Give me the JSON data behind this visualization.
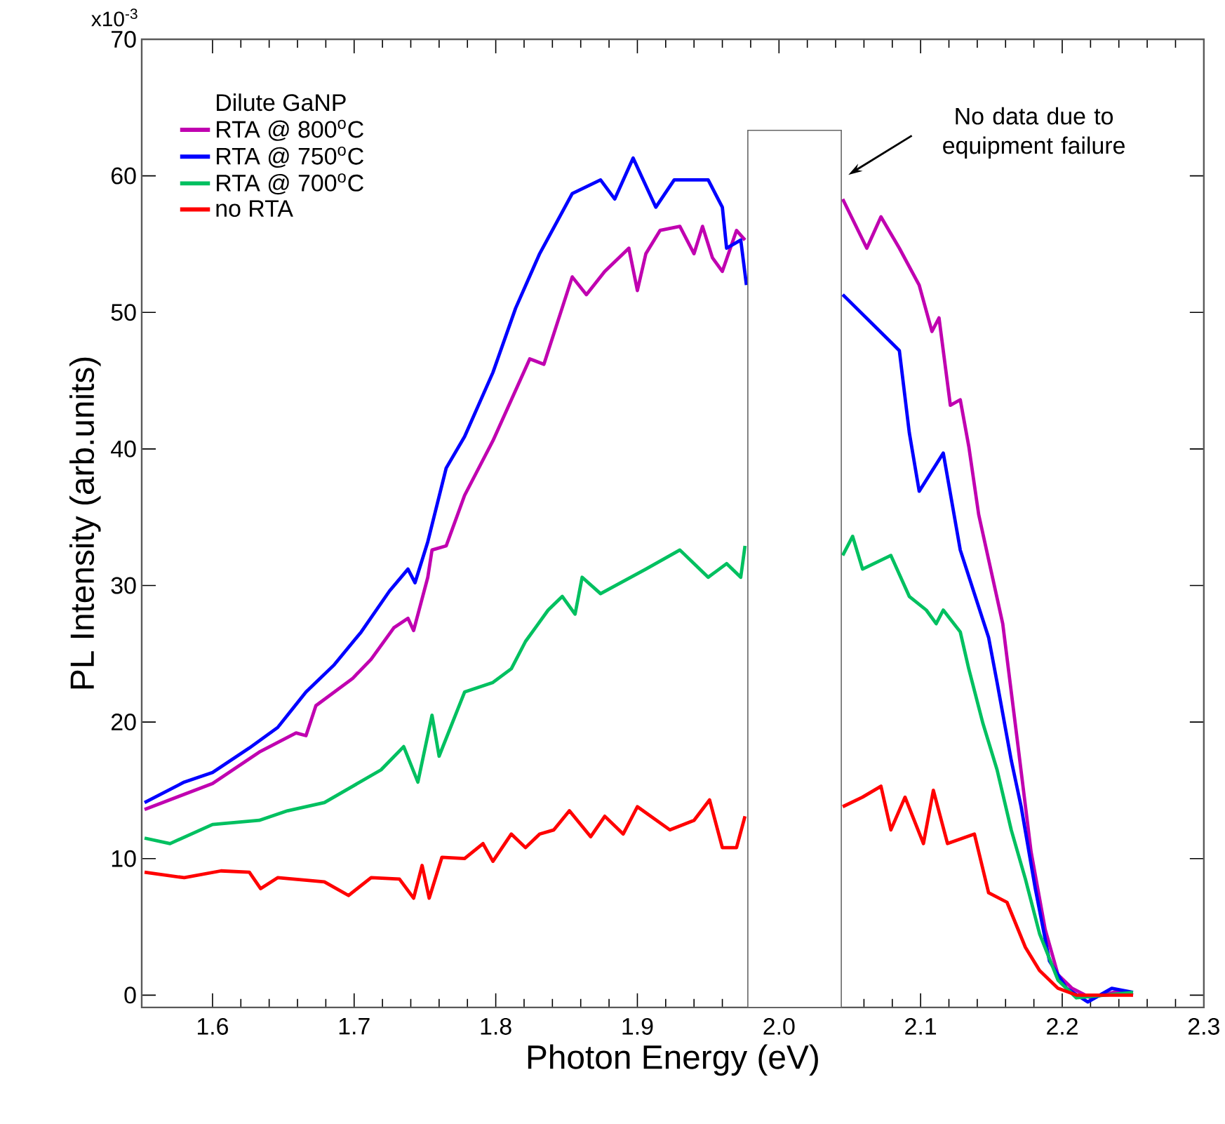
{
  "chart_data": {
    "type": "line",
    "xlabel": "Photon Energy (eV)",
    "ylabel": "PL Intensity (arb.units)",
    "legend_title": "Dilute GaNP",
    "xlim": [
      1.55,
      2.3
    ],
    "ylim": [
      -0.9,
      70
    ],
    "xticks": [
      1.6,
      1.7,
      1.8,
      1.9,
      {
        "value": 2.0,
        "label": "2.0"
      },
      2.1,
      2.2,
      2.3
    ],
    "yticks": [
      0,
      10,
      20,
      30,
      40,
      50,
      60,
      70
    ],
    "annotations": [
      "x10$^{-3}$",
      "No data due to equipment failure"
    ],
    "grid": false,
    "legend": "top left",
    "marker": "none",
    "line_style": "solid",
    "bands": [
      {
        "axis": "x",
        "from": 1.978,
        "to": 2.044,
        "color": "#ffffff"
      }
    ],
    "series": [
      {
        "name": "RTA @ 800$^{o}$C",
        "color": "#c000b0",
        "x": [
          1.552,
          1.6,
          1.633,
          1.659,
          1.666,
          1.673,
          1.699,
          1.712,
          1.728,
          1.738,
          1.742,
          1.752,
          1.755,
          1.765,
          1.778,
          1.798,
          1.824,
          1.834,
          1.854,
          1.864,
          1.877,
          1.894,
          1.9,
          1.906,
          1.916,
          1.93,
          1.94,
          1.946,
          1.953,
          1.96,
          1.97,
          1.976,
          2.01,
          2.045,
          2.062,
          2.072,
          2.085,
          2.099,
          2.108,
          2.113,
          2.121,
          2.128,
          2.134,
          2.141,
          2.158,
          2.168,
          2.178,
          2.188,
          2.197,
          2.207,
          2.22,
          2.24,
          2.25
        ],
        "values": [
          13.6,
          15.5,
          17.8,
          19.2,
          19.0,
          21.2,
          23.2,
          24.6,
          26.9,
          27.6,
          26.7,
          30.6,
          32.6,
          32.9,
          36.6,
          40.6,
          46.6,
          46.2,
          52.6,
          51.3,
          53.0,
          54.7,
          51.6,
          54.3,
          56.0,
          56.3,
          54.3,
          56.3,
          54.0,
          53.0,
          56.0,
          55.3,
          null,
          58.3,
          54.7,
          57.0,
          54.7,
          52.0,
          48.6,
          49.6,
          43.2,
          43.6,
          40.2,
          35.2,
          27.2,
          18.9,
          10.5,
          4.8,
          1.5,
          0.5,
          -0.2,
          0.3,
          0.0
        ]
      },
      {
        "name": "RTA @ 750$^{o}$C",
        "color": "#0000ff",
        "x": [
          1.552,
          1.58,
          1.6,
          1.626,
          1.646,
          1.666,
          1.686,
          1.705,
          1.725,
          1.738,
          1.743,
          1.752,
          1.765,
          1.778,
          1.798,
          1.814,
          1.831,
          1.854,
          1.874,
          1.884,
          1.897,
          1.913,
          1.926,
          1.95,
          1.96,
          1.963,
          1.973,
          1.977,
          2.01,
          2.045,
          2.085,
          2.092,
          2.099,
          2.116,
          2.128,
          2.138,
          2.148,
          2.154,
          2.164,
          2.171,
          2.181,
          2.191,
          2.203,
          2.218,
          2.235,
          2.25
        ],
        "values": [
          14.1,
          15.6,
          16.3,
          18.1,
          19.6,
          22.2,
          24.2,
          26.6,
          29.6,
          31.2,
          30.2,
          33.2,
          38.6,
          40.9,
          45.6,
          50.3,
          54.3,
          58.7,
          59.7,
          58.3,
          61.3,
          57.7,
          59.7,
          59.7,
          57.7,
          54.7,
          55.3,
          52.0,
          null,
          51.3,
          47.2,
          41.2,
          36.9,
          39.7,
          32.6,
          29.4,
          26.2,
          22.9,
          17.2,
          13.8,
          7.8,
          2.5,
          0.5,
          -0.5,
          0.5,
          0.2
        ]
      },
      {
        "name": "RTA @ 700$^{o}$C",
        "color": "#00c060",
        "x": [
          1.552,
          1.57,
          1.6,
          1.633,
          1.653,
          1.679,
          1.699,
          1.719,
          1.735,
          1.745,
          1.755,
          1.76,
          1.778,
          1.798,
          1.811,
          1.821,
          1.837,
          1.847,
          1.856,
          1.861,
          1.874,
          1.906,
          1.93,
          1.95,
          1.963,
          1.973,
          1.976,
          2.01,
          2.045,
          2.052,
          2.059,
          2.079,
          2.092,
          2.104,
          2.111,
          2.116,
          2.128,
          2.134,
          2.144,
          2.154,
          2.164,
          2.174,
          2.184,
          2.197,
          2.21,
          2.23,
          2.25
        ],
        "values": [
          11.5,
          11.1,
          12.5,
          12.8,
          13.5,
          14.1,
          15.3,
          16.5,
          18.2,
          15.6,
          20.5,
          17.5,
          22.2,
          22.9,
          23.9,
          25.9,
          28.2,
          29.2,
          27.9,
          30.6,
          29.4,
          31.2,
          32.6,
          30.6,
          31.6,
          30.6,
          32.9,
          null,
          32.2,
          33.6,
          31.2,
          32.2,
          29.2,
          28.2,
          27.2,
          28.2,
          26.6,
          23.9,
          19.9,
          16.5,
          12.1,
          8.5,
          4.5,
          1.1,
          -0.2,
          0.0,
          0.2
        ]
      },
      {
        "name": "no RTA",
        "color": "#ff0000",
        "x": [
          1.552,
          1.58,
          1.606,
          1.626,
          1.634,
          1.646,
          1.679,
          1.696,
          1.712,
          1.732,
          1.742,
          1.748,
          1.753,
          1.762,
          1.778,
          1.791,
          1.798,
          1.811,
          1.821,
          1.831,
          1.841,
          1.852,
          1.867,
          1.877,
          1.89,
          1.9,
          1.923,
          1.94,
          1.951,
          1.96,
          1.97,
          1.976,
          2.01,
          2.045,
          2.059,
          2.072,
          2.079,
          2.089,
          2.102,
          2.109,
          2.119,
          2.138,
          2.148,
          2.161,
          2.174,
          2.184,
          2.197,
          2.21,
          2.25
        ],
        "values": [
          9.0,
          8.6,
          9.1,
          9.0,
          7.8,
          8.6,
          8.3,
          7.3,
          8.6,
          8.5,
          7.1,
          9.5,
          7.1,
          10.1,
          10.0,
          11.1,
          9.8,
          11.8,
          10.8,
          11.8,
          12.1,
          13.5,
          11.6,
          13.1,
          11.8,
          13.8,
          12.1,
          12.8,
          14.3,
          10.8,
          10.8,
          13.1,
          null,
          13.8,
          14.5,
          15.3,
          12.1,
          14.5,
          11.1,
          15.0,
          11.1,
          11.8,
          7.5,
          6.8,
          3.5,
          1.8,
          0.5,
          0.0,
          0.0
        ]
      }
    ]
  }
}
